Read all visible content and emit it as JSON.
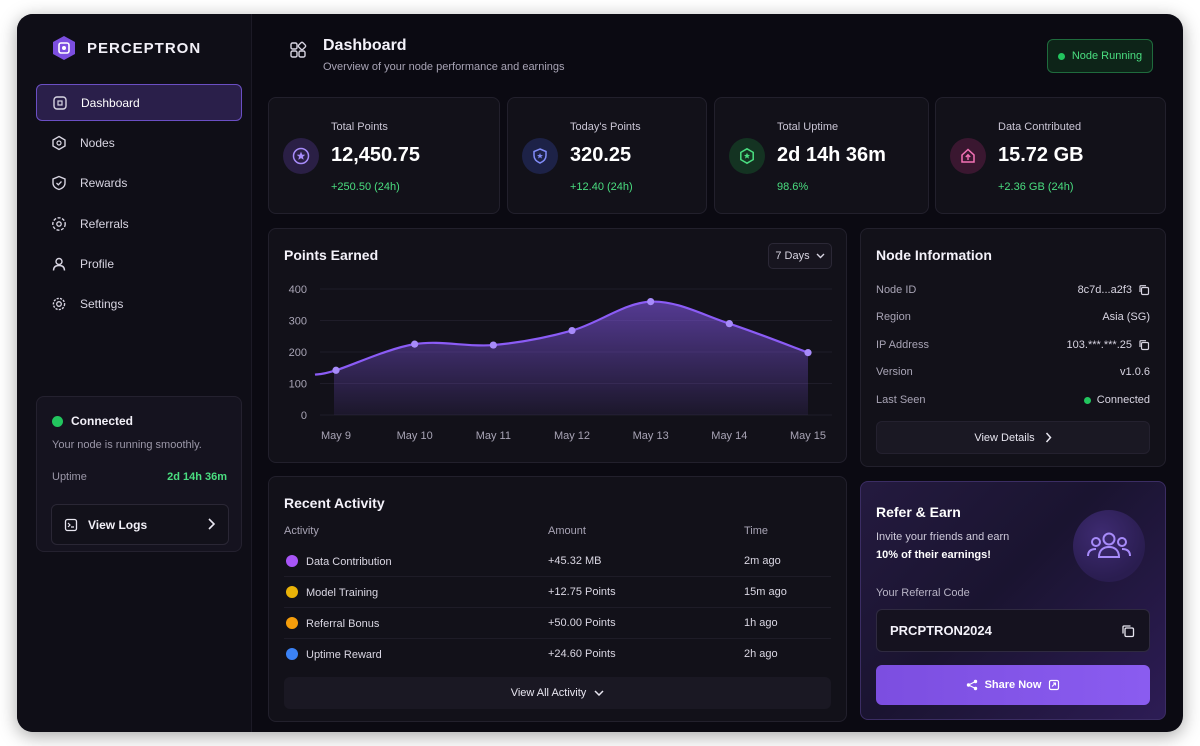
{
  "brand": {
    "name": "PERCEPTRON"
  },
  "nav": [
    {
      "label": "Dashboard",
      "icon": "dashboard-icon",
      "active": true
    },
    {
      "label": "Nodes",
      "icon": "nodes-icon"
    },
    {
      "label": "Rewards",
      "icon": "rewards-icon"
    },
    {
      "label": "Referrals",
      "icon": "referrals-icon"
    },
    {
      "label": "Profile",
      "icon": "user-icon"
    },
    {
      "label": "Settings",
      "icon": "gear-icon"
    }
  ],
  "status": {
    "title": "Connected",
    "subtitle": "Your node is running smoothly.",
    "uptime_label": "Uptime",
    "uptime_value": "2d 14h 36m",
    "logs_label": "View Logs"
  },
  "header": {
    "title": "Dashboard",
    "subtitle": "Overview of your node performance and earnings",
    "badge": "Node Running"
  },
  "stats": [
    {
      "label": "Total Points",
      "value": "12,450.75",
      "delta": "+250.50 (24h)",
      "icon": "star-icon",
      "color": "#8b5cf6"
    },
    {
      "label": "Today's Points",
      "value": "320.25",
      "delta": "+12.40 (24h)",
      "icon": "shield-icon",
      "color": "#6366f1"
    },
    {
      "label": "Total Uptime",
      "value": "2d 14h 36m",
      "delta": "98.6%",
      "icon": "uptime-icon",
      "color": "#22c55e"
    },
    {
      "label": "Data Contributed",
      "value": "15.72 GB",
      "delta": "+2.36 GB (24h)",
      "icon": "upload-icon",
      "color": "#ec4899"
    }
  ],
  "points_panel": {
    "title": "Points Earned",
    "range": "7 Days"
  },
  "chart_data": {
    "type": "area",
    "categories": [
      "May 9",
      "May 10",
      "May 11",
      "May 12",
      "May 13",
      "May 14",
      "May 15"
    ],
    "values": [
      142,
      225,
      222,
      268,
      360,
      290,
      198
    ],
    "start_value": 128,
    "yticks": [
      0,
      100,
      200,
      300,
      400
    ],
    "ylim": [
      0,
      400
    ],
    "color": "#8b5cf6"
  },
  "node_info": {
    "title": "Node Information",
    "rows": [
      {
        "key": "Node ID",
        "value": "8c7d...a2f3",
        "copy": true
      },
      {
        "key": "Region",
        "value": "Asia (SG)"
      },
      {
        "key": "IP Address",
        "value": "103.***.***.25",
        "copy": true
      },
      {
        "key": "Version",
        "value": "v1.0.6"
      },
      {
        "key": "Last Seen",
        "value": "Connected",
        "status": true
      }
    ],
    "details_label": "View Details"
  },
  "activity": {
    "title": "Recent Activity",
    "headers": {
      "activity": "Activity",
      "amount": "Amount",
      "time": "Time"
    },
    "rows": [
      {
        "name": "Data Contribution",
        "amount": "+45.32 MB",
        "time": "2m ago",
        "color": "#a855f7"
      },
      {
        "name": "Model Training",
        "amount": "+12.75 Points",
        "time": "15m ago",
        "color": "#eab308"
      },
      {
        "name": "Referral Bonus",
        "amount": "+50.00 Points",
        "time": "1h ago",
        "color": "#f59e0b"
      },
      {
        "name": "Uptime Reward",
        "amount": "+24.60 Points",
        "time": "2h ago",
        "color": "#3b82f6"
      }
    ],
    "view_all": "View All Activity"
  },
  "refer": {
    "title": "Refer & Earn",
    "line1": "Invite your friends and earn",
    "line2": "10% of their earnings!",
    "code_label": "Your Referral Code",
    "code": "PRCPTRON2024",
    "share": "Share Now"
  }
}
